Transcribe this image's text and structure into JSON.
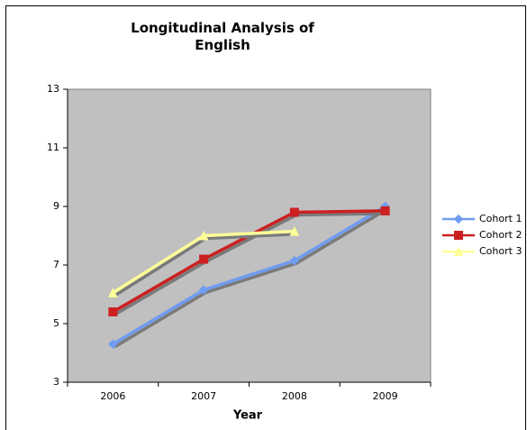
{
  "chart_data": {
    "type": "line",
    "title": "Longitudinal Analysis of English",
    "x_label": "Year",
    "categories": [
      "2006",
      "2007",
      "2008",
      "2009"
    ],
    "series": [
      {
        "name": "Cohort 1",
        "color": "#6f9cf0",
        "marker": "diamond",
        "values": [
          4.3,
          6.15,
          7.15,
          9.0
        ]
      },
      {
        "name": "Cohort 2",
        "color": "#cc2020",
        "marker": "square",
        "values": [
          5.4,
          7.2,
          8.8,
          8.85
        ]
      },
      {
        "name": "Cohort 3",
        "color": "#ffff99",
        "marker": "triangle",
        "values": [
          6.05,
          8.0,
          8.15,
          null
        ]
      }
    ],
    "ylim": [
      3,
      13
    ],
    "yticks": [
      3,
      5,
      7,
      9,
      11,
      13
    ],
    "legend": "right",
    "plot_background": "#c0c0c0"
  }
}
